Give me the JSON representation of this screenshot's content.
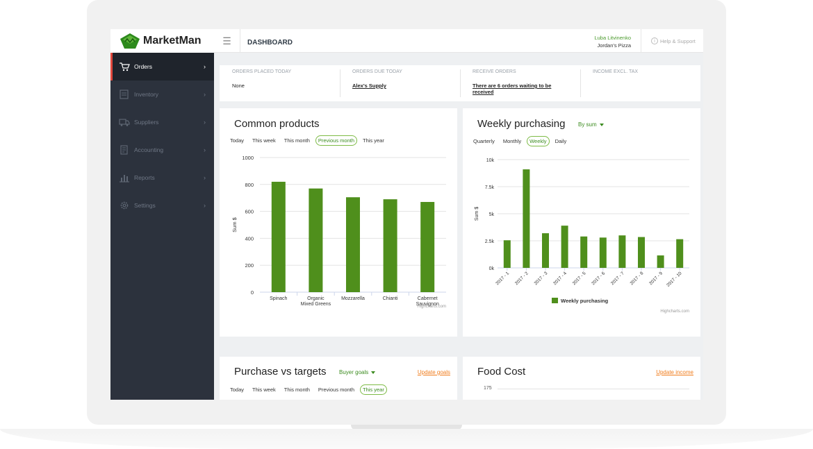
{
  "app": {
    "brand": "MarketMan",
    "page_title": "DASHBOARD",
    "accent": "#4f8f1c",
    "sidebar_accent": "#e2483d"
  },
  "user": {
    "name": "Luba Litvinenko",
    "org": "Jordan's Pizza"
  },
  "help": {
    "label": "Help & Support"
  },
  "sidebar": {
    "items": [
      {
        "label": "Orders",
        "icon": "cart-icon",
        "active": true
      },
      {
        "label": "Inventory",
        "icon": "inventory-icon",
        "active": false
      },
      {
        "label": "Suppliers",
        "icon": "truck-icon",
        "active": false
      },
      {
        "label": "Accounting",
        "icon": "document-icon",
        "active": false
      },
      {
        "label": "Reports",
        "icon": "bar-chart-icon",
        "active": false
      },
      {
        "label": "Settings",
        "icon": "gear-icon",
        "active": false
      }
    ]
  },
  "stats": [
    {
      "label": "ORDERS PLACED TODAY",
      "value": "None",
      "link": false
    },
    {
      "label": "ORDERS DUE TODAY",
      "value": "Alex's Supply",
      "link": true
    },
    {
      "label": "RECEIVE ORDERS",
      "value": "There are 6 orders waiting to be received",
      "link": true
    },
    {
      "label": "INCOME EXCL. TAX",
      "value": "",
      "link": false
    }
  ],
  "common_products": {
    "title": "Common products",
    "tabs": [
      "Today",
      "This week",
      "This month",
      "Previous month",
      "This year"
    ],
    "selected_tab": "Previous month",
    "credit": "Highcharts.com"
  },
  "weekly_purchasing": {
    "title": "Weekly purchasing",
    "dropdown": "By sum",
    "tabs": [
      "Quarterly",
      "Monthly",
      "Weekly",
      "Daily"
    ],
    "selected_tab": "Weekly",
    "credit": "Highcharts.com"
  },
  "purchase_vs_targets": {
    "title": "Purchase vs targets",
    "dropdown": "Buyer goals",
    "action": "Update goals",
    "tabs": [
      "Today",
      "This week",
      "This month",
      "Previous month",
      "This year"
    ],
    "selected_tab": "This year"
  },
  "food_cost": {
    "title": "Food Cost",
    "action": "Update income",
    "first_tick": "175"
  },
  "chart_data": [
    {
      "type": "bar",
      "categories": [
        "Spinach",
        "Organic Mixed Greens",
        "Mozzarella",
        "Chianti",
        "Cabernet Sauvignon"
      ],
      "category_lines": [
        [
          "Spinach"
        ],
        [
          "Organic",
          "Mixed Greens"
        ],
        [
          "Mozzarella"
        ],
        [
          "Chianti"
        ],
        [
          "Cabernet",
          "Sauvignon"
        ]
      ],
      "values": [
        820,
        770,
        705,
        690,
        670
      ],
      "ylabel": "Sum $",
      "ylim": [
        0,
        1000
      ],
      "yticks": [
        "0",
        "200",
        "400",
        "600",
        "800",
        "1000"
      ],
      "color": "#4f8f1c",
      "grid": true
    },
    {
      "type": "bar",
      "categories": [
        "2017 - 1",
        "2017 - 2",
        "2017 - 3",
        "2017 - 4",
        "2017 - 5",
        "2017 - 6",
        "2017 - 7",
        "2017 - 8",
        "2017 - 9",
        "2017 - 10"
      ],
      "series": [
        {
          "name": "Weekly purchasing",
          "values": [
            2550,
            9100,
            3200,
            3900,
            2900,
            2800,
            3000,
            2850,
            1150,
            2650
          ]
        }
      ],
      "ylabel": "Sum $",
      "ylim": [
        0,
        10000
      ],
      "yticks": [
        "0k",
        "2.5k",
        "5k",
        "7.5k",
        "10k"
      ],
      "color": "#4f8f1c",
      "legend": "bottom",
      "grid": true
    }
  ]
}
